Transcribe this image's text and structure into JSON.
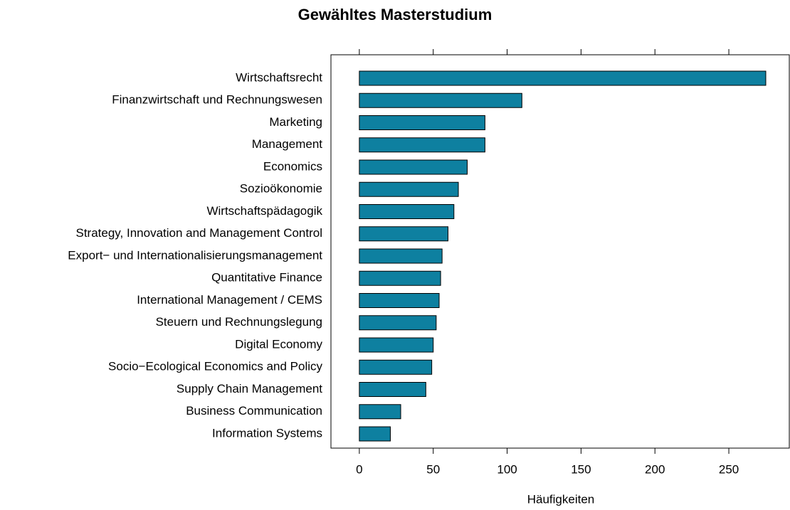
{
  "chart_data": {
    "type": "bar",
    "orientation": "horizontal",
    "title": "Gewähltes Masterstudium",
    "x_label": "Häufigkeiten",
    "categories": [
      "Wirtschaftsrecht",
      "Finanzwirtschaft und Rechnungswesen",
      "Marketing",
      "Management",
      "Economics",
      "Sozioökonomie",
      "Wirtschaftspädagogik",
      "Strategy, Innovation and Management Control",
      "Export− und Internationalisierungsmanagement",
      "Quantitative Finance",
      "International Management / CEMS",
      "Steuern und Rechnungslegung",
      "Digital Economy",
      "Socio−Ecological Economics and Policy",
      "Supply Chain Management",
      "Business Communication",
      "Information Systems"
    ],
    "values": [
      275,
      110,
      85,
      85,
      73,
      67,
      64,
      60,
      56,
      55,
      54,
      52,
      50,
      49,
      45,
      28,
      21
    ],
    "color": "#0e80a0",
    "xlim": [
      -19.2,
      290.9
    ],
    "xticks": [
      0,
      50,
      100,
      150,
      200,
      250
    ]
  }
}
